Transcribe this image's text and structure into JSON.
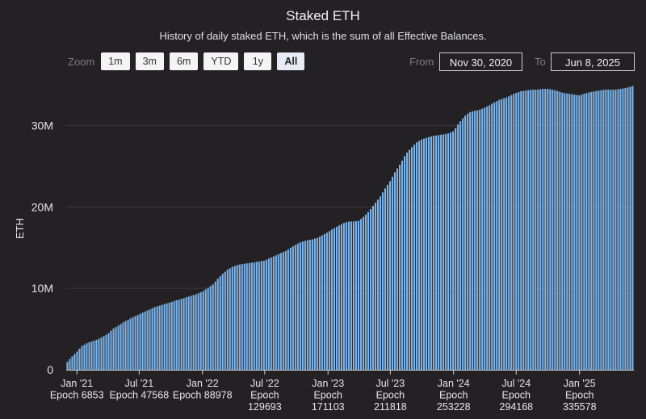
{
  "header": {
    "title": "Staked ETH",
    "subtitle": "History of daily staked ETH, which is the sum of all Effective Balances."
  },
  "zoom": {
    "label": "Zoom",
    "buttons": [
      "1m",
      "3m",
      "6m",
      "YTD",
      "1y",
      "All"
    ],
    "active": "All"
  },
  "range": {
    "from_label": "From",
    "from_value": "Nov 30, 2020",
    "to_label": "To",
    "to_value": "Jun 8, 2025"
  },
  "colors": {
    "background": "#232124",
    "bar": "#7cb5ec",
    "grid": "#3c3a3d",
    "text": "#e6e6e6"
  },
  "chart_data": {
    "type": "bar",
    "title": "Staked ETH",
    "subtitle": "History of daily staked ETH, which is the sum of all Effective Balances.",
    "ylabel": "ETH",
    "xlabel": "",
    "ylim": [
      0,
      35000000
    ],
    "yticks": [
      {
        "value": 0,
        "label": "0"
      },
      {
        "value": 10000000,
        "label": "10M"
      },
      {
        "value": 20000000,
        "label": "20M"
      },
      {
        "value": 30000000,
        "label": "30M"
      }
    ],
    "xlim": [
      "2020-12-01",
      "2025-06-08"
    ],
    "xticks": [
      {
        "date": "2021-01-01",
        "lines": [
          "Jan '21",
          "Epoch 6853"
        ]
      },
      {
        "date": "2021-07-01",
        "lines": [
          "Jul '21",
          "Epoch 47568"
        ]
      },
      {
        "date": "2022-01-01",
        "lines": [
          "Jan '22",
          "Epoch 88978"
        ]
      },
      {
        "date": "2022-07-01",
        "lines": [
          "Jul '22",
          "Epoch",
          "129693"
        ]
      },
      {
        "date": "2023-01-01",
        "lines": [
          "Jan '23",
          "Epoch",
          "171103"
        ]
      },
      {
        "date": "2023-07-01",
        "lines": [
          "Jul '23",
          "Epoch",
          "211818"
        ]
      },
      {
        "date": "2024-01-01",
        "lines": [
          "Jan '24",
          "Epoch",
          "253228"
        ]
      },
      {
        "date": "2024-07-01",
        "lines": [
          "Jul '24",
          "Epoch",
          "294168"
        ]
      },
      {
        "date": "2025-01-01",
        "lines": [
          "Jan '25",
          "Epoch",
          "335578"
        ]
      }
    ],
    "series": [
      {
        "points": [
          [
            "2020-12-01",
            800000
          ],
          [
            "2020-12-15",
            1500000
          ],
          [
            "2021-01-01",
            2200000
          ],
          [
            "2021-01-15",
            2900000
          ],
          [
            "2021-02-01",
            3300000
          ],
          [
            "2021-02-15",
            3500000
          ],
          [
            "2021-03-01",
            3700000
          ],
          [
            "2021-03-15",
            4000000
          ],
          [
            "2021-04-01",
            4400000
          ],
          [
            "2021-04-15",
            5000000
          ],
          [
            "2021-05-01",
            5400000
          ],
          [
            "2021-05-15",
            5800000
          ],
          [
            "2021-06-01",
            6200000
          ],
          [
            "2021-06-15",
            6500000
          ],
          [
            "2021-07-01",
            6800000
          ],
          [
            "2021-07-15",
            7100000
          ],
          [
            "2021-08-01",
            7400000
          ],
          [
            "2021-08-15",
            7700000
          ],
          [
            "2021-09-01",
            7900000
          ],
          [
            "2021-09-15",
            8100000
          ],
          [
            "2021-10-01",
            8300000
          ],
          [
            "2021-10-15",
            8500000
          ],
          [
            "2021-11-01",
            8700000
          ],
          [
            "2021-11-15",
            8900000
          ],
          [
            "2021-12-01",
            9100000
          ],
          [
            "2021-12-15",
            9300000
          ],
          [
            "2022-01-01",
            9600000
          ],
          [
            "2022-01-15",
            10000000
          ],
          [
            "2022-02-01",
            10500000
          ],
          [
            "2022-02-15",
            11200000
          ],
          [
            "2022-03-01",
            11800000
          ],
          [
            "2022-03-15",
            12300000
          ],
          [
            "2022-04-01",
            12700000
          ],
          [
            "2022-04-15",
            12900000
          ],
          [
            "2022-05-01",
            13000000
          ],
          [
            "2022-05-15",
            13100000
          ],
          [
            "2022-06-01",
            13200000
          ],
          [
            "2022-06-15",
            13300000
          ],
          [
            "2022-07-01",
            13400000
          ],
          [
            "2022-07-15",
            13700000
          ],
          [
            "2022-08-01",
            14000000
          ],
          [
            "2022-08-15",
            14300000
          ],
          [
            "2022-09-01",
            14600000
          ],
          [
            "2022-09-15",
            15000000
          ],
          [
            "2022-10-01",
            15400000
          ],
          [
            "2022-10-15",
            15700000
          ],
          [
            "2022-11-01",
            15900000
          ],
          [
            "2022-11-15",
            16000000
          ],
          [
            "2022-12-01",
            16200000
          ],
          [
            "2022-12-15",
            16500000
          ],
          [
            "2023-01-01",
            16900000
          ],
          [
            "2023-01-15",
            17300000
          ],
          [
            "2023-02-01",
            17700000
          ],
          [
            "2023-02-15",
            18000000
          ],
          [
            "2023-03-01",
            18200000
          ],
          [
            "2023-03-15",
            18200000
          ],
          [
            "2023-04-01",
            18300000
          ],
          [
            "2023-04-15",
            18800000
          ],
          [
            "2023-05-01",
            19500000
          ],
          [
            "2023-05-15",
            20300000
          ],
          [
            "2023-06-01",
            21200000
          ],
          [
            "2023-06-15",
            22200000
          ],
          [
            "2023-07-01",
            23200000
          ],
          [
            "2023-07-15",
            24300000
          ],
          [
            "2023-08-01",
            25400000
          ],
          [
            "2023-08-15",
            26500000
          ],
          [
            "2023-09-01",
            27300000
          ],
          [
            "2023-09-15",
            27900000
          ],
          [
            "2023-10-01",
            28300000
          ],
          [
            "2023-10-15",
            28500000
          ],
          [
            "2023-11-01",
            28700000
          ],
          [
            "2023-11-15",
            28800000
          ],
          [
            "2023-12-01",
            28900000
          ],
          [
            "2023-12-15",
            29000000
          ],
          [
            "2024-01-01",
            29300000
          ],
          [
            "2024-01-15",
            30200000
          ],
          [
            "2024-02-01",
            31100000
          ],
          [
            "2024-02-15",
            31600000
          ],
          [
            "2024-03-01",
            31800000
          ],
          [
            "2024-03-15",
            31900000
          ],
          [
            "2024-04-01",
            32200000
          ],
          [
            "2024-04-15",
            32500000
          ],
          [
            "2024-05-01",
            32900000
          ],
          [
            "2024-05-15",
            33200000
          ],
          [
            "2024-06-01",
            33400000
          ],
          [
            "2024-06-15",
            33700000
          ],
          [
            "2024-07-01",
            34000000
          ],
          [
            "2024-07-15",
            34200000
          ],
          [
            "2024-08-01",
            34300000
          ],
          [
            "2024-08-15",
            34400000
          ],
          [
            "2024-09-01",
            34400000
          ],
          [
            "2024-09-15",
            34500000
          ],
          [
            "2024-10-01",
            34500000
          ],
          [
            "2024-10-15",
            34400000
          ],
          [
            "2024-11-01",
            34200000
          ],
          [
            "2024-11-15",
            34000000
          ],
          [
            "2024-12-01",
            33900000
          ],
          [
            "2024-12-15",
            33800000
          ],
          [
            "2025-01-01",
            33700000
          ],
          [
            "2025-01-15",
            33900000
          ],
          [
            "2025-02-01",
            34100000
          ],
          [
            "2025-02-15",
            34200000
          ],
          [
            "2025-03-01",
            34300000
          ],
          [
            "2025-03-15",
            34400000
          ],
          [
            "2025-04-01",
            34400000
          ],
          [
            "2025-04-15",
            34400000
          ],
          [
            "2025-05-01",
            34500000
          ],
          [
            "2025-05-15",
            34600000
          ],
          [
            "2025-06-01",
            34800000
          ],
          [
            "2025-06-08",
            34900000
          ]
        ]
      }
    ],
    "grid": true,
    "legend": "none"
  }
}
